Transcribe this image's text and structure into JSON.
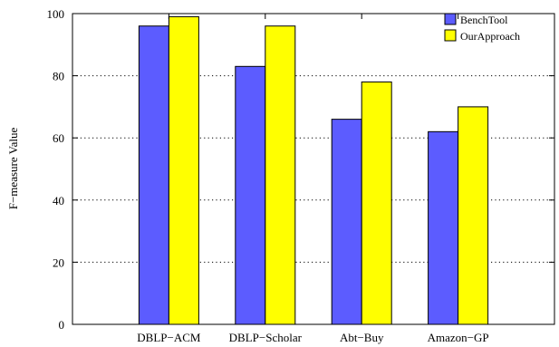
{
  "chart_data": {
    "type": "bar",
    "title": "",
    "xlabel": "",
    "ylabel": "F−measure Value",
    "ylim": [
      0,
      100
    ],
    "yticks": [
      0,
      20,
      40,
      60,
      80,
      100
    ],
    "grid": true,
    "legend_position": "top-right",
    "categories": [
      "DBLP−ACM",
      "DBLP−Scholar",
      "Abt−Buy",
      "Amazon−GP"
    ],
    "series": [
      {
        "name": "BenchTool",
        "color": "#5c5cff",
        "values": [
          96,
          83,
          66,
          62
        ]
      },
      {
        "name": "OurApproach",
        "color": "#ffff00",
        "values": [
          99,
          96,
          78,
          70
        ]
      }
    ]
  }
}
